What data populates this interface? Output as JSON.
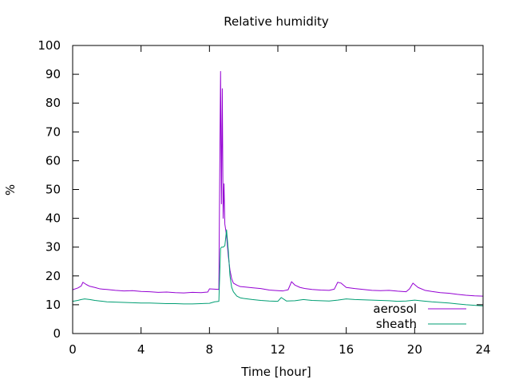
{
  "chart_data": {
    "type": "line",
    "title": "Relative humidity",
    "xlabel": "Time [hour]",
    "ylabel": "%",
    "xlim": [
      0,
      24
    ],
    "ylim": [
      0,
      100
    ],
    "x_ticks": [
      0,
      4,
      8,
      12,
      16,
      20,
      24
    ],
    "y_ticks": [
      0,
      10,
      20,
      30,
      40,
      50,
      60,
      70,
      80,
      90,
      100
    ],
    "grid": false,
    "legend_position": "bottom-right",
    "series": [
      {
        "name": "aerosol",
        "color": "#9400d3",
        "x": [
          0.0,
          0.3,
          0.5,
          0.6,
          0.8,
          1.0,
          1.3,
          1.6,
          2.0,
          2.5,
          3.0,
          3.5,
          4.0,
          4.5,
          5.0,
          5.5,
          6.0,
          6.5,
          7.0,
          7.5,
          7.9,
          8.0,
          8.3,
          8.55,
          8.6,
          8.65,
          8.7,
          8.75,
          8.8,
          8.85,
          8.9,
          9.0,
          9.1,
          9.2,
          9.3,
          9.4,
          9.6,
          9.8,
          10.0,
          10.5,
          11.0,
          11.5,
          12.0,
          12.3,
          12.6,
          12.8,
          13.0,
          13.3,
          13.6,
          14.0,
          14.5,
          15.0,
          15.3,
          15.5,
          15.7,
          16.0,
          16.5,
          17.0,
          17.5,
          18.0,
          18.5,
          19.0,
          19.5,
          19.7,
          19.9,
          20.2,
          20.6,
          21.0,
          21.5,
          22.0,
          22.5,
          23.0,
          23.5,
          24.0
        ],
        "y": [
          15.2,
          15.8,
          16.5,
          17.8,
          17.0,
          16.4,
          16.0,
          15.5,
          15.3,
          15.0,
          14.8,
          14.9,
          14.6,
          14.5,
          14.3,
          14.4,
          14.2,
          14.1,
          14.3,
          14.2,
          14.4,
          15.5,
          15.4,
          15.3,
          55.0,
          91.0,
          45.0,
          85.0,
          40.0,
          52.0,
          38.0,
          34.0,
          27.0,
          22.0,
          19.0,
          17.5,
          16.8,
          16.3,
          16.2,
          15.9,
          15.6,
          15.1,
          14.9,
          14.8,
          15.2,
          18.0,
          16.8,
          16.0,
          15.6,
          15.3,
          15.1,
          15.0,
          15.4,
          17.8,
          17.5,
          16.0,
          15.6,
          15.3,
          15.0,
          14.9,
          15.0,
          14.7,
          14.5,
          15.5,
          17.5,
          16.0,
          15.0,
          14.6,
          14.2,
          14.0,
          13.6,
          13.3,
          13.1,
          13.0
        ]
      },
      {
        "name": "sheath",
        "color": "#009e73",
        "x": [
          0.0,
          0.3,
          0.5,
          0.7,
          1.0,
          1.3,
          1.6,
          2.0,
          2.5,
          3.0,
          3.5,
          4.0,
          4.5,
          5.0,
          5.5,
          6.0,
          6.5,
          7.0,
          7.5,
          8.0,
          8.3,
          8.55,
          8.6,
          8.65,
          8.7,
          8.8,
          8.9,
          9.0,
          9.1,
          9.2,
          9.3,
          9.4,
          9.6,
          9.8,
          10.0,
          10.5,
          11.0,
          11.5,
          12.0,
          12.2,
          12.5,
          13.0,
          13.5,
          14.0,
          14.5,
          15.0,
          15.5,
          16.0,
          16.5,
          17.0,
          17.5,
          18.0,
          18.5,
          19.0,
          19.5,
          20.0,
          20.5,
          21.0,
          21.5,
          22.0,
          22.5,
          23.0,
          23.5,
          24.0
        ],
        "y": [
          11.2,
          11.5,
          11.8,
          12.0,
          11.8,
          11.5,
          11.3,
          11.0,
          10.9,
          10.8,
          10.7,
          10.6,
          10.6,
          10.5,
          10.4,
          10.4,
          10.3,
          10.3,
          10.4,
          10.5,
          11.0,
          11.2,
          20.5,
          29.5,
          30.0,
          30.0,
          30.5,
          36.0,
          29.0,
          20.0,
          16.0,
          14.5,
          13.0,
          12.4,
          12.2,
          11.8,
          11.5,
          11.3,
          11.2,
          12.5,
          11.3,
          11.4,
          11.8,
          11.5,
          11.4,
          11.3,
          11.6,
          12.0,
          11.8,
          11.7,
          11.6,
          11.5,
          11.4,
          11.2,
          11.3,
          11.6,
          11.3,
          11.0,
          10.8,
          10.6,
          10.3,
          10.0,
          9.8,
          9.6
        ]
      }
    ]
  }
}
